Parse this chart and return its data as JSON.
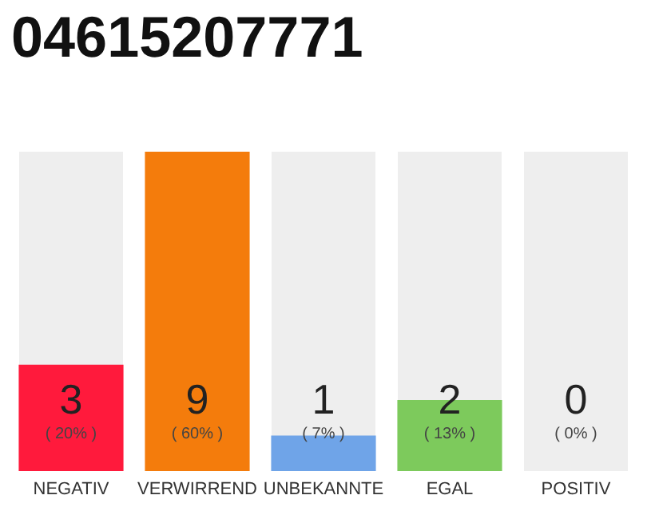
{
  "chart_data": {
    "type": "bar",
    "title": "04615207771",
    "categories": [
      "NEGATIV",
      "VERWIRREND",
      "UNBEKANNTE",
      "EGAL",
      "POSITIV"
    ],
    "values": [
      3,
      9,
      1,
      2,
      0
    ],
    "colors": [
      "#ff1a3c",
      "#f47c0c",
      "#6fa4e8",
      "#7dca5c",
      "#cccccc"
    ],
    "value_labels": [
      "3\n( 20% )",
      "9\n( 60% )",
      "1\n( 7% )",
      "2\n( 13% )",
      "0\n( 0% )"
    ]
  }
}
